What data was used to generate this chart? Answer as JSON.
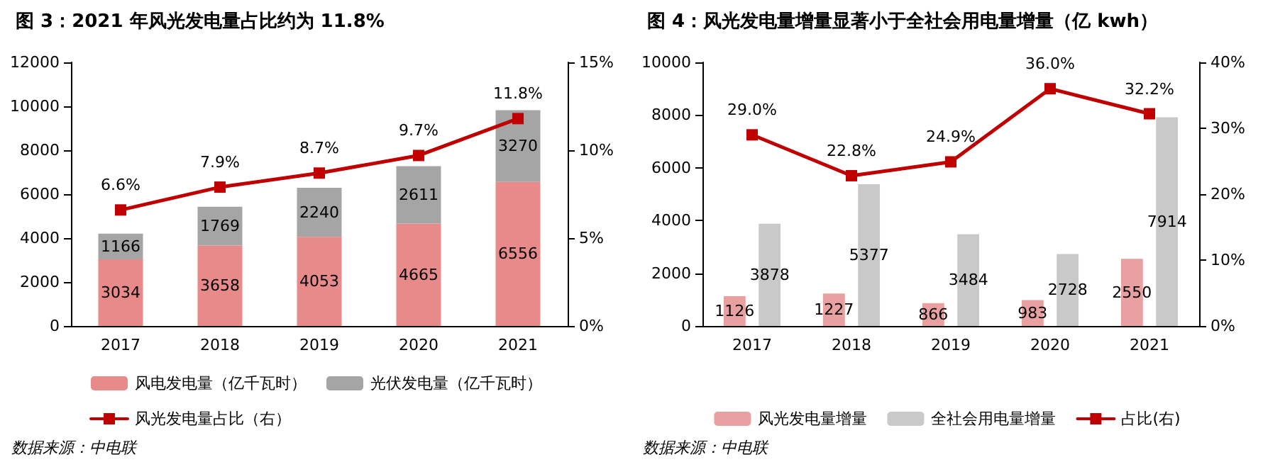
{
  "chart_data": [
    {
      "type": "bar",
      "title": "图 3：2021 年风光发电量占比约为 11.8%",
      "categories": [
        "2017",
        "2018",
        "2019",
        "2020",
        "2021"
      ],
      "stacked": true,
      "data_labels": true,
      "ylim": [
        0,
        12000
      ],
      "yticks": [
        0,
        2000,
        4000,
        6000,
        8000,
        10000,
        12000
      ],
      "y2lim": [
        0,
        15
      ],
      "y2ticks": [
        {
          "value": 0,
          "label": "0%"
        },
        {
          "value": 5,
          "label": "5%"
        },
        {
          "value": 10,
          "label": "10%"
        },
        {
          "value": 15,
          "label": "15%"
        }
      ],
      "grid": false,
      "legend": "bottom",
      "marker": "square",
      "annotations": [
        "数据来源：中电联"
      ],
      "series": [
        {
          "name": "风电发电量（亿千瓦时）",
          "color": "#e88a8a",
          "values": [
            3034,
            3658,
            4053,
            4665,
            6556
          ]
        },
        {
          "name": "光伏发电量（亿千瓦时）",
          "color": "#a5a5a5",
          "values": [
            1166,
            1769,
            2240,
            2611,
            3270
          ]
        },
        {
          "name": "风光发电量占比（右）",
          "type": "line",
          "axis": "y2",
          "color": "#c00000",
          "values": [
            6.6,
            7.9,
            8.7,
            9.7,
            11.8
          ],
          "value_labels": [
            "6.6%",
            "7.9%",
            "8.7%",
            "9.7%",
            "11.8%"
          ]
        }
      ]
    },
    {
      "type": "bar",
      "title": "图 4：风光发电量增量显著小于全社会用电量增量（亿 kwh）",
      "categories": [
        "2017",
        "2018",
        "2019",
        "2020",
        "2021"
      ],
      "data_labels": true,
      "ylim": [
        0,
        10000
      ],
      "yticks": [
        0,
        2000,
        4000,
        6000,
        8000,
        10000
      ],
      "y2lim": [
        0,
        40
      ],
      "y2ticks": [
        {
          "value": 0,
          "label": "0%"
        },
        {
          "value": 10,
          "label": "10%"
        },
        {
          "value": 20,
          "label": "20%"
        },
        {
          "value": 30,
          "label": "30%"
        },
        {
          "value": 40,
          "label": "40%"
        }
      ],
      "grid": false,
      "legend": "bottom",
      "marker": "square",
      "annotations": [
        "数据来源：中电联"
      ],
      "series": [
        {
          "name": "风光发电量增量",
          "color": "#e8a0a0",
          "values": [
            1126,
            1227,
            866,
            983,
            2550
          ]
        },
        {
          "name": "全社会用电量增量",
          "color": "#c9c9c9",
          "values": [
            3878,
            5377,
            3484,
            2728,
            7914
          ]
        },
        {
          "name": "占比(右)",
          "type": "line",
          "axis": "y2",
          "color": "#c00000",
          "values": [
            29.0,
            22.8,
            24.9,
            36.0,
            32.2
          ],
          "value_labels": [
            "29.0%",
            "22.8%",
            "24.9%",
            "36.0%",
            "32.2%"
          ]
        }
      ]
    }
  ]
}
